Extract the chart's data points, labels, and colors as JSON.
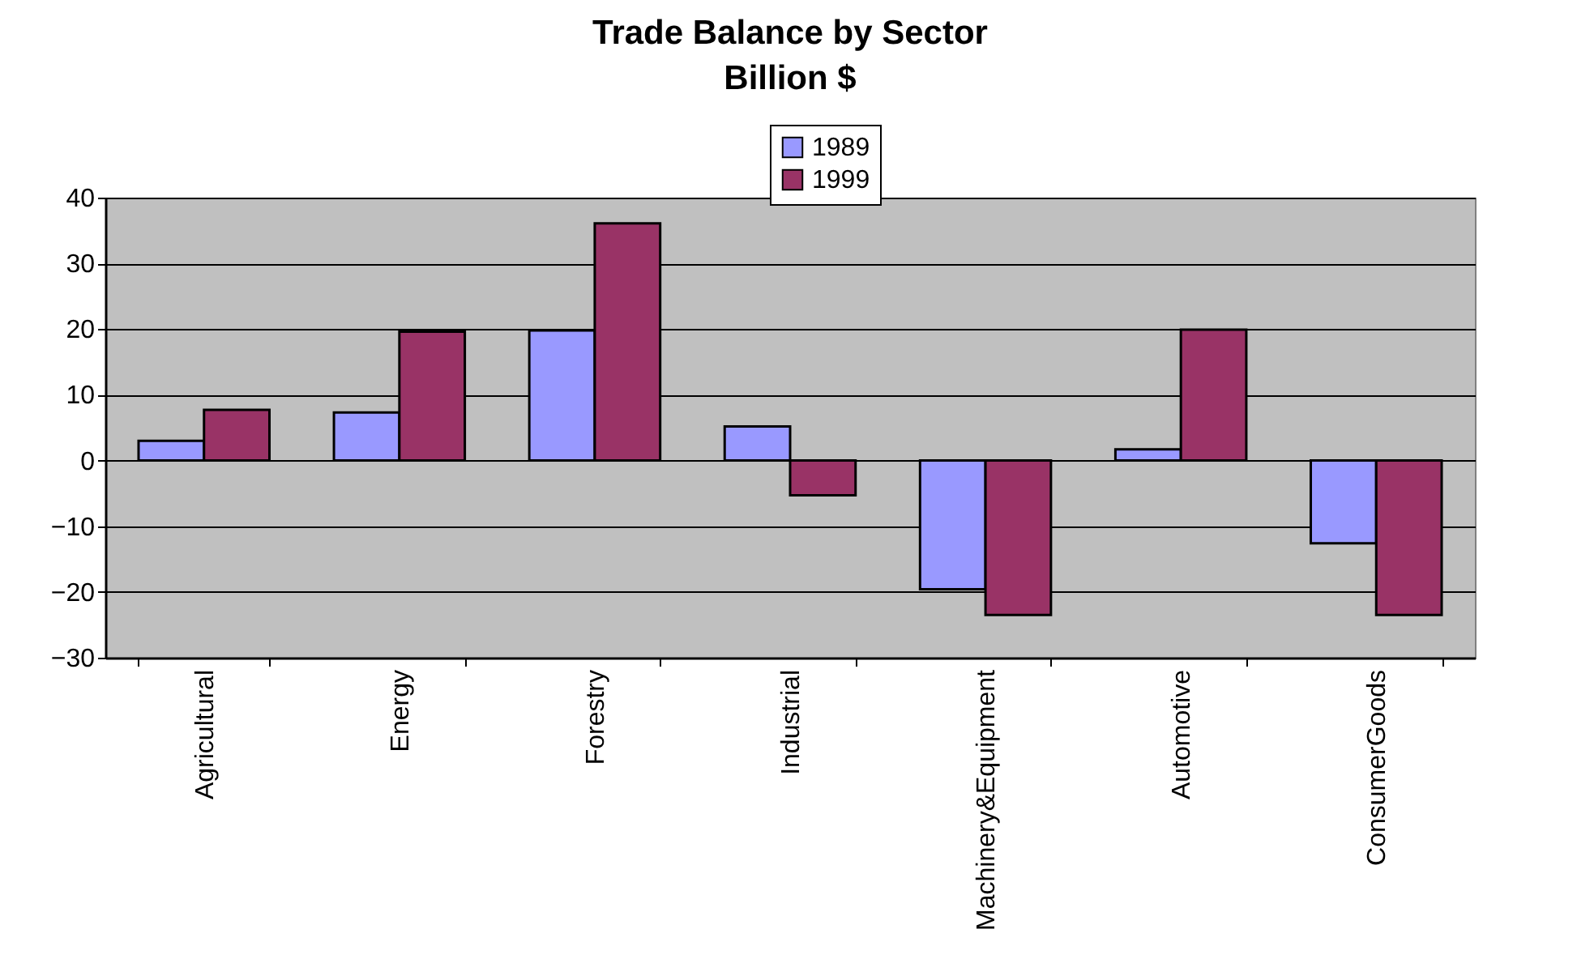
{
  "chart_data": {
    "type": "bar",
    "title": "Trade Balance by Sector\nBillion $",
    "categories": [
      "Agricultural",
      "Energy",
      "Forestry",
      "Industrial",
      "Machinery&Equipment",
      "Automotive",
      "ConsumerGoods"
    ],
    "series": [
      {
        "name": "1989",
        "color": "#9999ff",
        "values": [
          3.0,
          7.3,
          19.8,
          5.2,
          -19.6,
          1.7,
          -12.6
        ]
      },
      {
        "name": "1999",
        "color": "#993366",
        "values": [
          7.7,
          19.6,
          36.1,
          -5.3,
          -23.5,
          19.9,
          -23.5
        ]
      }
    ],
    "ylim": [
      -30,
      40
    ],
    "yticks": [
      -30,
      -20,
      -10,
      0,
      10,
      20,
      30,
      40
    ],
    "grid": "y",
    "legend": "top right"
  }
}
